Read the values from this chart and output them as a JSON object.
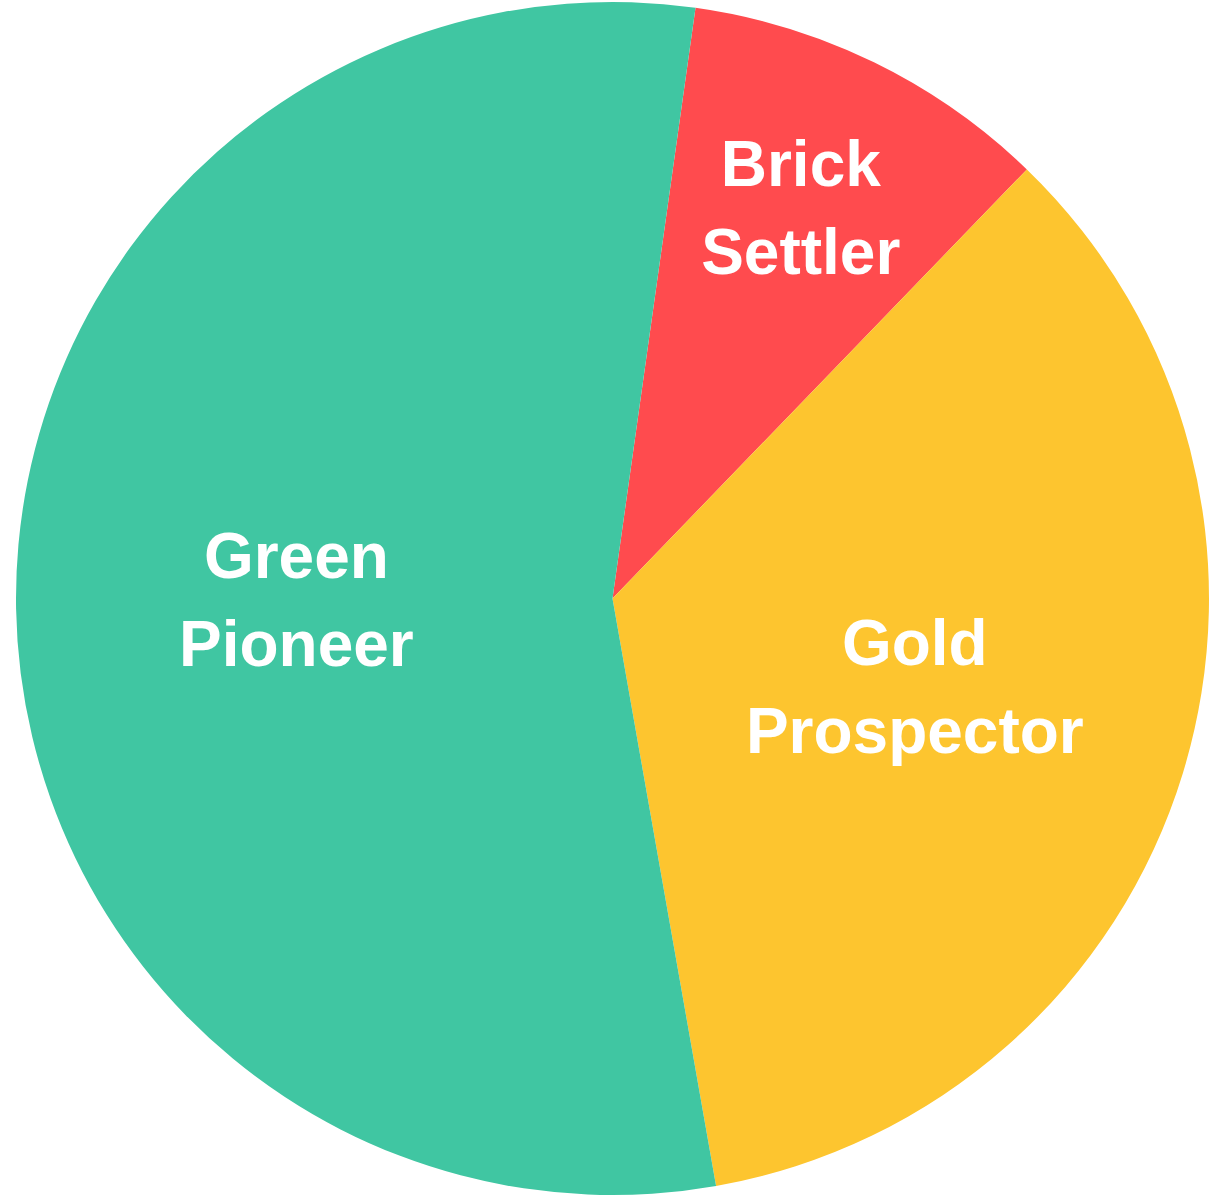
{
  "chart_data": {
    "type": "pie",
    "categories": [
      "Brick Settler",
      "Gold Prospector",
      "Green Pioneer"
    ],
    "values": [
      10,
      35,
      55
    ],
    "colors": [
      "#ff4b4e",
      "#fdc52f",
      "#40c6a2"
    ],
    "legend": false
  }
}
